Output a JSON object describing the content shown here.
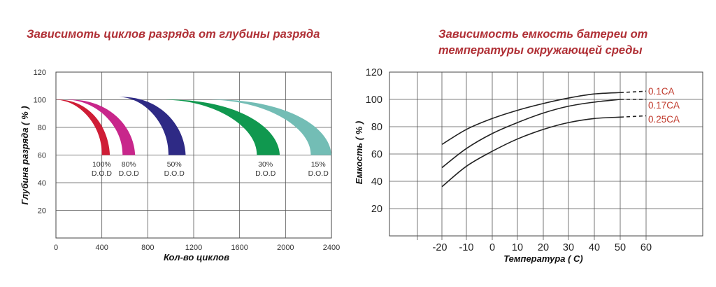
{
  "charts": {
    "left": {
      "title": "Зависимоть циклов разряда от глубины разряда",
      "xlabel": "Кол-во циклов",
      "ylabel": "Глубина разряда ( % )"
    },
    "right": {
      "title_line1": "Зависимость емкость батереи от",
      "title_line2": "температуры окружающей среды",
      "xlabel": "Температура ( С)",
      "ylabel": "Емкость ( % )"
    }
  },
  "chart_data": [
    {
      "type": "area",
      "title": "Зависимоть циклов разряда от глубины разряда",
      "xlabel": "Кол-во циклов",
      "ylabel": "Глубина разряда ( % )",
      "xlim": [
        0,
        2400
      ],
      "ylim": [
        0,
        120
      ],
      "x_ticks": [
        "0",
        "400",
        "800",
        "1200",
        "1600",
        "2000",
        "2400"
      ],
      "y_ticks": [
        "20",
        "40",
        "60",
        "80",
        "100",
        "120"
      ],
      "grid": true,
      "series": [
        {
          "line1": "100%",
          "line2": "D.O.D",
          "color": "#cf1d36",
          "start_x": 0,
          "end_range": [
            400,
            470
          ],
          "start_y": 100,
          "end_y": 60
        },
        {
          "line1": "80%",
          "line2": "D.O.D",
          "color": "#c8268b",
          "start_x": 100,
          "end_range": [
            580,
            690
          ],
          "start_y": 100,
          "end_y": 60
        },
        {
          "line1": "50%",
          "line2": "D.O.D",
          "color": "#2e2a85",
          "start_x": 550,
          "end_range": [
            980,
            1130
          ],
          "start_y": 102,
          "end_y": 60
        },
        {
          "line1": "30%",
          "line2": "D.O.D",
          "color": "#10984f",
          "start_x": 950,
          "end_range": [
            1750,
            1950
          ],
          "start_y": 100,
          "end_y": 60
        },
        {
          "line1": "15%",
          "line2": "D.O.D",
          "color": "#73bdb5",
          "start_x": 1350,
          "end_range": [
            2220,
            2400
          ],
          "start_y": 100,
          "end_y": 60
        }
      ]
    },
    {
      "type": "line",
      "title": "Зависимость емкость батереи от температуры окружающей среды",
      "xlabel": "Температура ( С)",
      "ylabel": "Емкость ( % )",
      "x_ticks": [
        "-20",
        "-10",
        "0",
        "10",
        "20",
        "30",
        "40",
        "50",
        "60"
      ],
      "x_tick_values": [
        -20,
        -10,
        0,
        10,
        20,
        30,
        40,
        50,
        60
      ],
      "y_ticks": [
        "20",
        "40",
        "60",
        "80",
        "100",
        "120"
      ],
      "ylim": [
        0,
        120
      ],
      "grid": true,
      "series": [
        {
          "name": "0.1CA",
          "x": [
            -20,
            -10,
            0,
            10,
            20,
            30,
            40,
            50
          ],
          "y": [
            67,
            78,
            86,
            92,
            97,
            101,
            104,
            105
          ],
          "dashed_to": 60,
          "dashed_end_y": 106
        },
        {
          "name": "0.17CA",
          "x": [
            -20,
            -10,
            0,
            10,
            20,
            30,
            40,
            50
          ],
          "y": [
            50,
            64,
            75,
            83,
            90,
            95,
            98,
            100
          ],
          "dashed_to": 60,
          "dashed_end_y": 100
        },
        {
          "name": "0.25CA",
          "x": [
            -20,
            -10,
            0,
            10,
            20,
            30,
            40,
            50
          ],
          "y": [
            36,
            51,
            62,
            71,
            78,
            83,
            86,
            87
          ],
          "dashed_to": 60,
          "dashed_end_y": 88
        }
      ]
    }
  ]
}
